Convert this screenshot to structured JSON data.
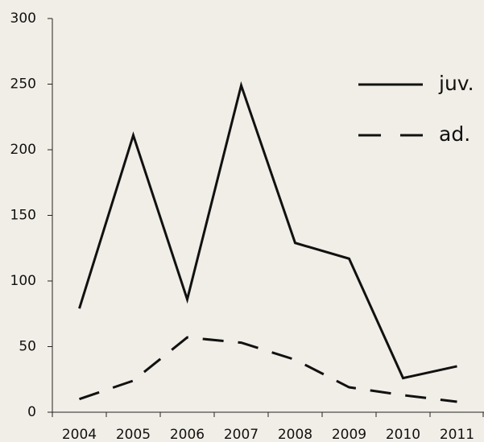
{
  "chart_data": {
    "type": "line",
    "categories": [
      "2004",
      "2005",
      "2006",
      "2007",
      "2008",
      "2009",
      "2010",
      "2011"
    ],
    "series": [
      {
        "name": "juv.",
        "color": "#111111",
        "linestyle": "solid",
        "values": [
          79,
          211,
          86,
          249,
          129,
          117,
          26,
          35
        ]
      },
      {
        "name": "ad.",
        "color": "#111111",
        "linestyle": "dashed",
        "values": [
          10,
          24,
          57,
          53,
          40,
          19,
          13,
          8
        ]
      }
    ],
    "ylim": [
      0,
      300
    ],
    "yticks": [
      0,
      50,
      100,
      150,
      200,
      250,
      300
    ],
    "grid": false,
    "legend": "top-right"
  }
}
